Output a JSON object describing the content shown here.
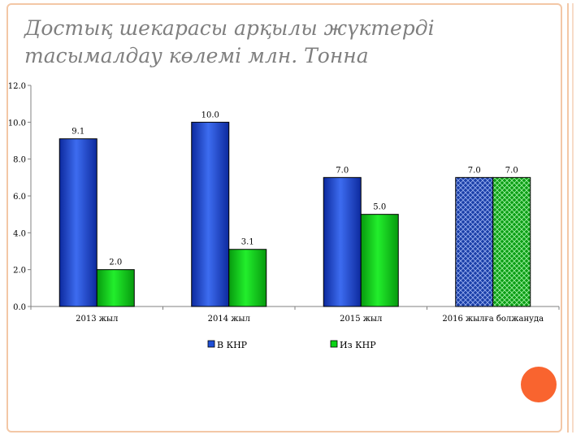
{
  "title": "Достық шекарасы арқылы  жүктерді тасымалдау көлемі млн. Тонна",
  "colors": {
    "accent_circle": "#f9642f",
    "frame": "#f3c7a6",
    "series_v_knr": "#1f4fd6",
    "series_iz_knr": "#0bd315"
  },
  "chart_data": {
    "type": "bar",
    "title": "Достық шекарасы арқылы  жүктерді тасымалдау көлемі млн. Тонна",
    "xlabel": "",
    "ylabel": "",
    "ylim": [
      0,
      12
    ],
    "yticks": [
      "0.0",
      "2.0",
      "4.0",
      "6.0",
      "8.0",
      "10.0",
      "12.0"
    ],
    "grid": false,
    "legend_position": "bottom",
    "categories": [
      "2013 жыл",
      "2014 жыл",
      "2015 жыл",
      "2016 жылға болжануда"
    ],
    "series": [
      {
        "name": "В КНР",
        "values": [
          9.1,
          10.0,
          7.0,
          7.0
        ],
        "labels": [
          "9.1",
          "10.0",
          "7.0",
          "7.0"
        ],
        "hatched_last": true
      },
      {
        "name": "Из КНР",
        "values": [
          2.0,
          3.1,
          5.0,
          7.0
        ],
        "labels": [
          "2.0",
          "3.1",
          "5.0",
          "7.0"
        ],
        "hatched_last": true
      }
    ]
  }
}
